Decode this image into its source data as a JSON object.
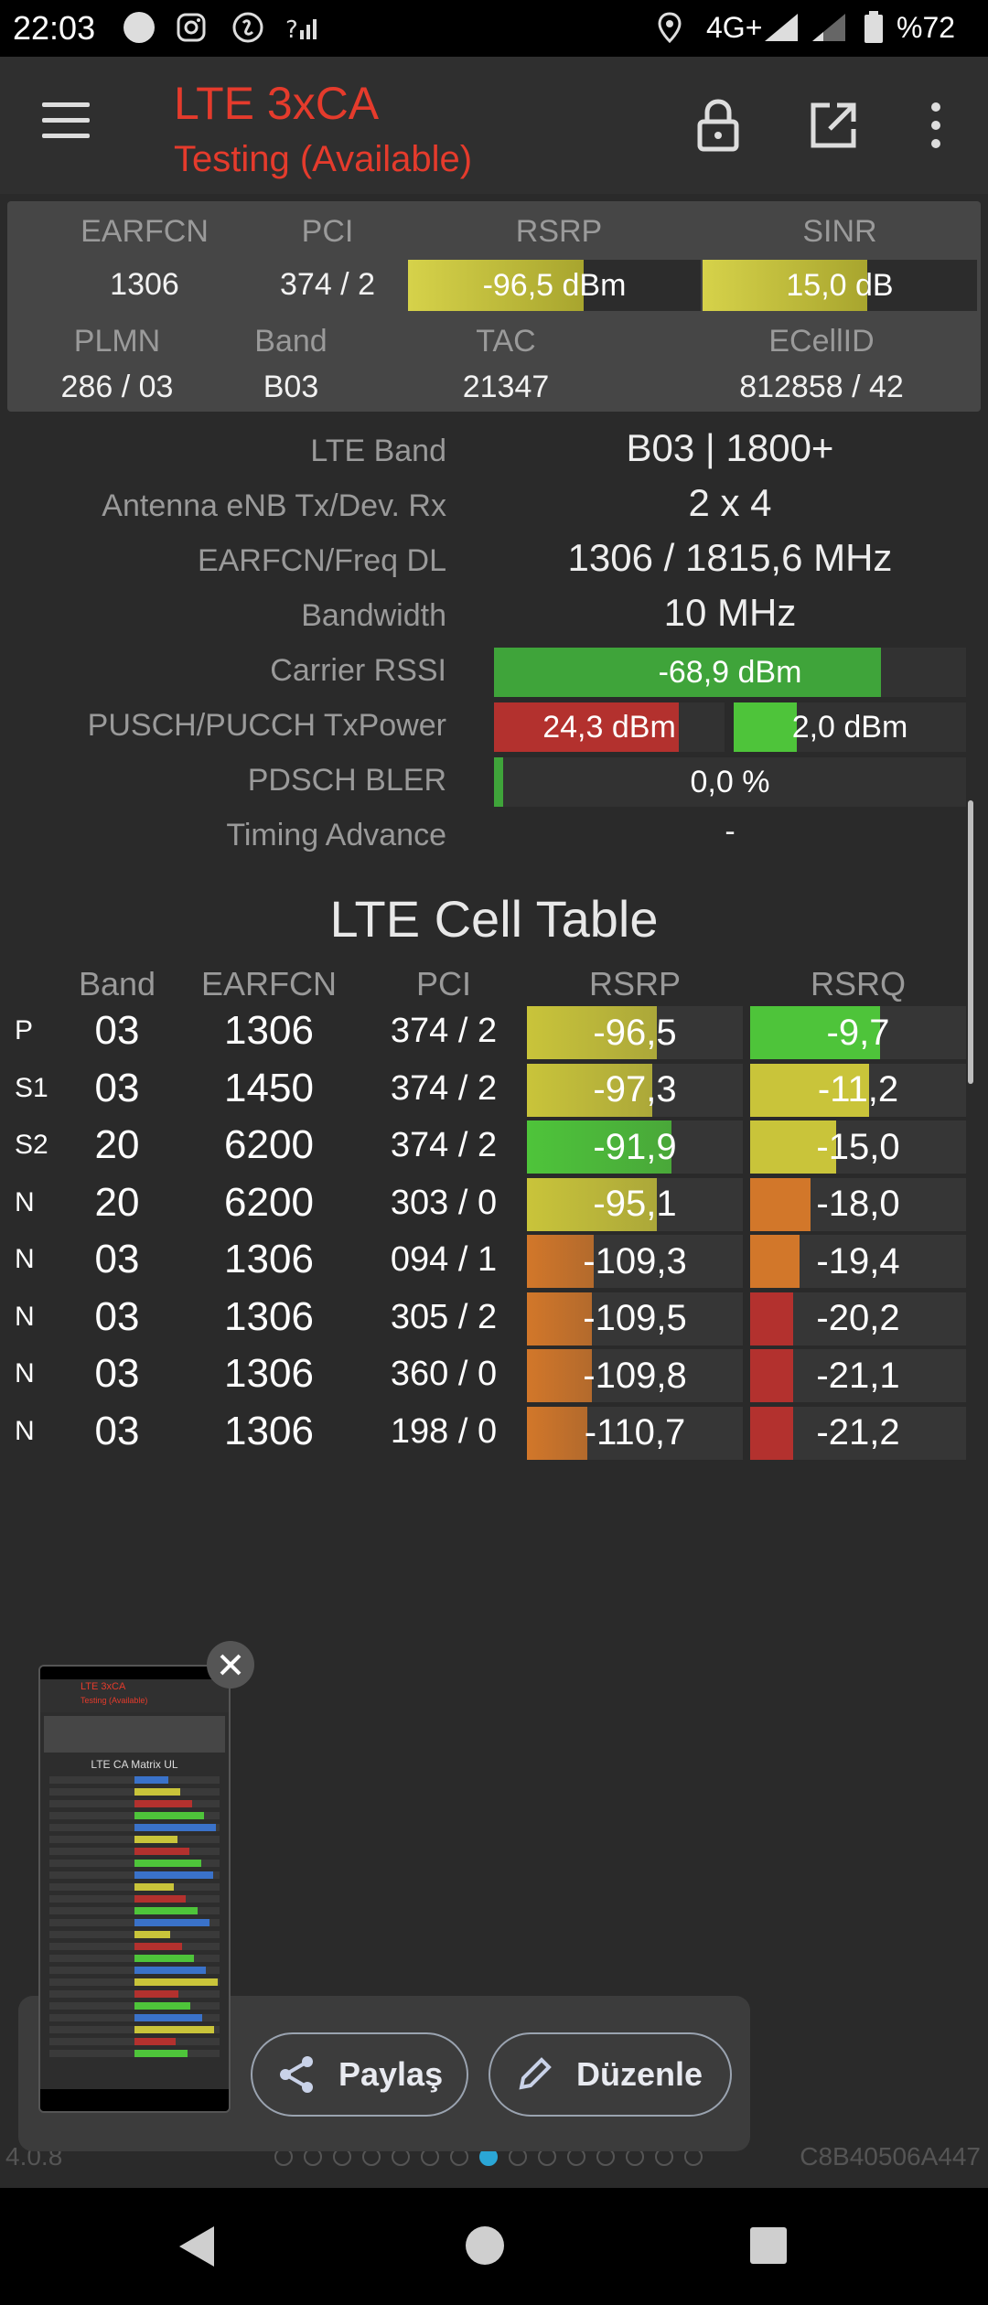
{
  "status_bar": {
    "time": "22:03",
    "network": "4G+",
    "battery": "%72"
  },
  "app_bar": {
    "title": "LTE 3xCA",
    "subtitle": "Testing (Available)"
  },
  "summary": {
    "earfcn_label": "EARFCN",
    "earfcn": "1306",
    "pci_label": "PCI",
    "pci": "374 / 2",
    "rsrp_label": "RSRP",
    "rsrp": "-96,5 dBm",
    "rsrp_fill": 0.6,
    "sinr_label": "SINR",
    "sinr": "15,0 dB",
    "sinr_fill": 0.6,
    "plmn_label": "PLMN",
    "plmn": "286 / 03",
    "band_label": "Band",
    "band": "B03",
    "tac_label": "TAC",
    "tac": "21347",
    "ecellid_label": "ECellID",
    "ecellid": "812858 / 42"
  },
  "details": {
    "lte_band_label": "LTE Band",
    "lte_band": "B03 | 1800+",
    "antenna_label": "Antenna eNB Tx/Dev. Rx",
    "antenna": "2 x 4",
    "freq_label": "EARFCN/Freq DL",
    "freq": "1306 / 1815,6 MHz",
    "bandwidth_label": "Bandwidth",
    "bandwidth": "10 MHz",
    "rssi_label": "Carrier RSSI",
    "rssi": "-68,9 dBm",
    "rssi_fill": 0.82,
    "txpower_label": "PUSCH/PUCCH TxPower",
    "pusch": "24,3 dBm",
    "pusch_fill": 0.8,
    "pucch": "2,0 dBm",
    "pucch_fill": 0.27,
    "bler_label": "PDSCH BLER",
    "bler": "0,0 %",
    "bler_fill": 0.02,
    "ta_label": "Timing Advance",
    "ta": "-"
  },
  "cell_table": {
    "title": "LTE Cell Table",
    "headers": {
      "band": "Band",
      "earfcn": "EARFCN",
      "pci": "PCI",
      "rsrp": "RSRP",
      "rsrq": "RSRQ"
    },
    "rows": [
      {
        "type": "P",
        "band": "03",
        "earfcn": "1306",
        "pci": "374 / 2",
        "rsrp": "-96,5",
        "rsrp_fill": 0.6,
        "rsrp_color": "#c9c43a",
        "rsrq": "-9,7",
        "rsrq_fill": 0.6,
        "rsrq_color": "#4ec43a"
      },
      {
        "type": "S1",
        "band": "03",
        "earfcn": "1450",
        "pci": "374 / 2",
        "rsrp": "-97,3",
        "rsrp_fill": 0.58,
        "rsrp_color": "#c9c43a",
        "rsrq": "-11,2",
        "rsrq_fill": 0.55,
        "rsrq_color": "#c9c43a"
      },
      {
        "type": "S2",
        "band": "20",
        "earfcn": "6200",
        "pci": "374 / 2",
        "rsrp": "-91,9",
        "rsrp_fill": 0.67,
        "rsrp_color": "#4ec43a",
        "rsrq": "-15,0",
        "rsrq_fill": 0.4,
        "rsrq_color": "#c9c43a"
      },
      {
        "type": "N",
        "band": "20",
        "earfcn": "6200",
        "pci": "303 / 0",
        "rsrp": "-95,1",
        "rsrp_fill": 0.6,
        "rsrp_color": "#c9c43a",
        "rsrq": "-18,0",
        "rsrq_fill": 0.28,
        "rsrq_color": "#d2772a"
      },
      {
        "type": "N",
        "band": "03",
        "earfcn": "1306",
        "pci": "094 / 1",
        "rsrp": "-109,3",
        "rsrp_fill": 0.31,
        "rsrp_color": "#d2772a",
        "rsrq": "-19,4",
        "rsrq_fill": 0.23,
        "rsrq_color": "#d2772a"
      },
      {
        "type": "N",
        "band": "03",
        "earfcn": "1306",
        "pci": "305 / 2",
        "rsrp": "-109,5",
        "rsrp_fill": 0.3,
        "rsrp_color": "#d2772a",
        "rsrq": "-20,2",
        "rsrq_fill": 0.2,
        "rsrq_color": "#b3312e"
      },
      {
        "type": "N",
        "band": "03",
        "earfcn": "1306",
        "pci": "360 / 0",
        "rsrp": "-109,8",
        "rsrp_fill": 0.3,
        "rsrp_color": "#d2772a",
        "rsrq": "-21,1",
        "rsrq_fill": 0.2,
        "rsrq_color": "#b3312e"
      },
      {
        "type": "N",
        "band": "03",
        "earfcn": "1306",
        "pci": "198 / 0",
        "rsrp": "-110,7",
        "rsrp_fill": 0.28,
        "rsrp_color": "#d2772a",
        "rsrq": "-21,2",
        "rsrq_fill": 0.2,
        "rsrq_color": "#b3312e"
      }
    ]
  },
  "preview": {
    "thumb_title": "LTE 3xCA",
    "thumb_subtitle": "Testing (Available)",
    "thumb_heading": "LTE CA Matrix UL",
    "share_label": "Paylaş",
    "edit_label": "Düzenle"
  },
  "footer": {
    "version": "4.0.8",
    "device_id": "C8B40506A447"
  },
  "colors": {
    "accent": "#e53b2c",
    "yellow": "#c9c43a",
    "green": "#4ec43a",
    "orange": "#d2772a",
    "red": "#b3312e",
    "active_dot": "#2aa6d6"
  }
}
